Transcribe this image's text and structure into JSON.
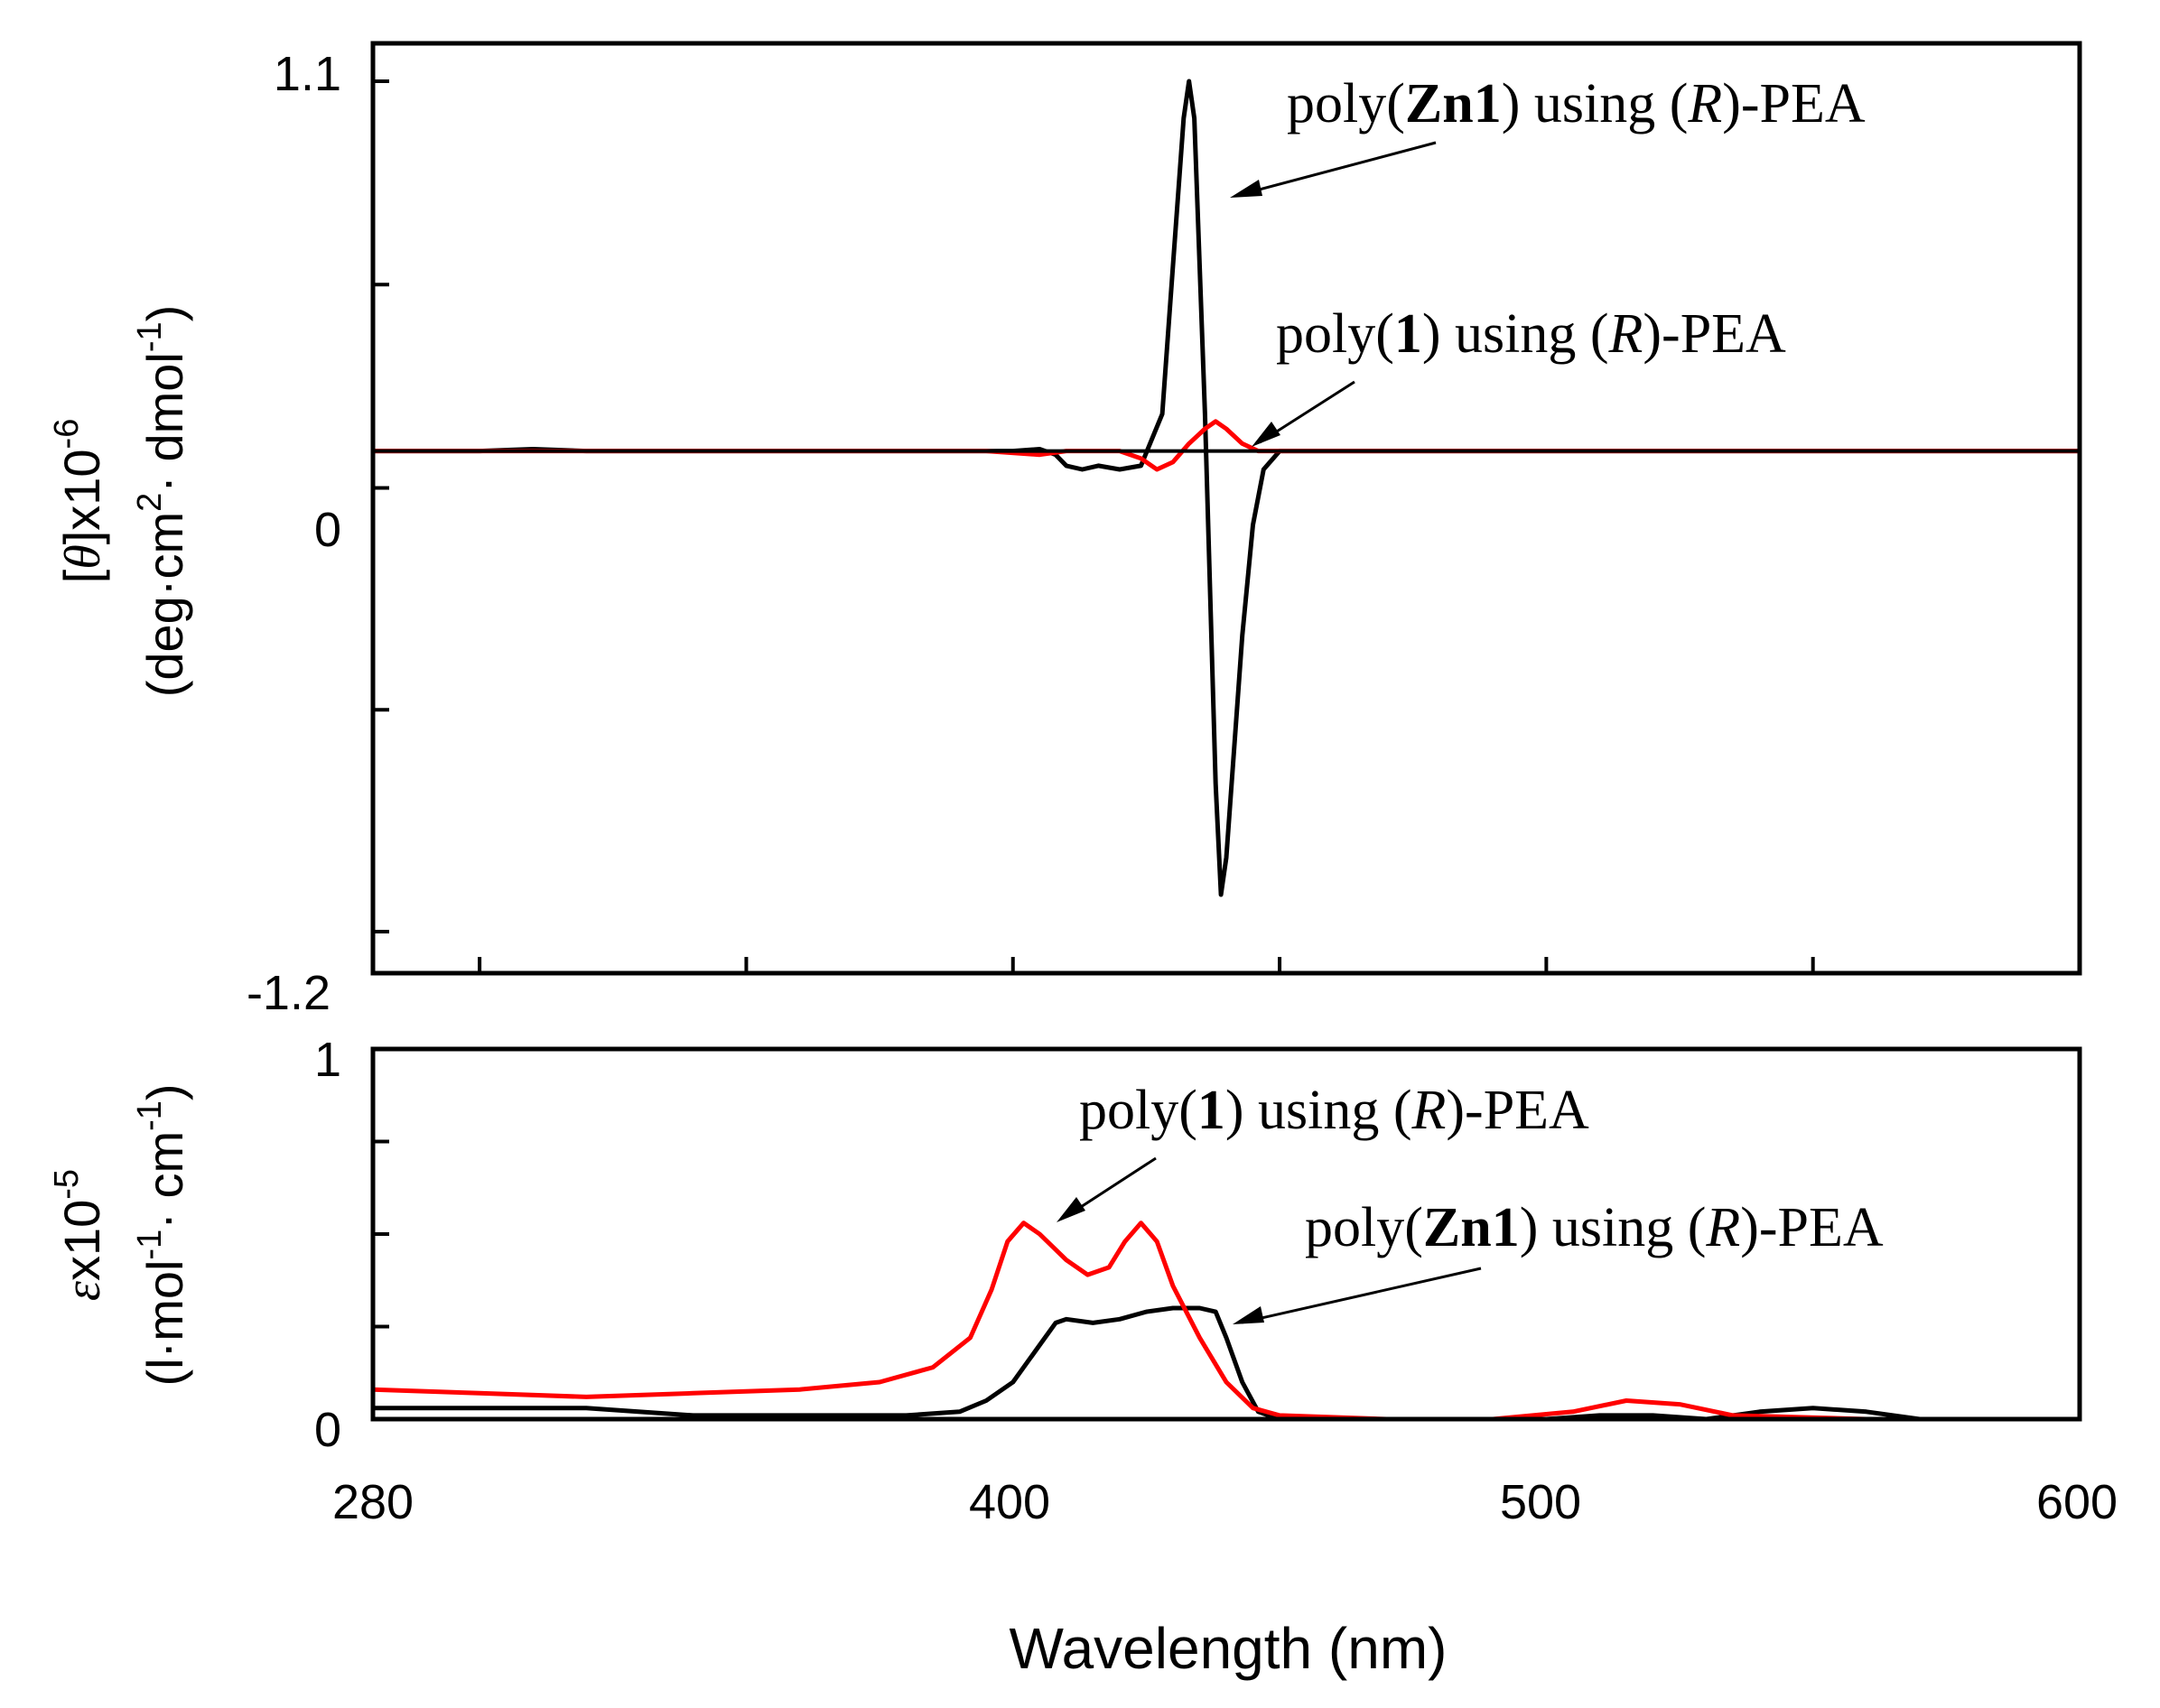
{
  "colors": {
    "black_series": "#000000",
    "red_series": "#ff0000",
    "axis": "#000000"
  },
  "chart_data": [
    {
      "type": "line",
      "panel": "top",
      "title": "",
      "ylabel_line1": "[θ]x10-6",
      "ylabel_line1_parts": {
        "open": "[",
        "symbol": "θ",
        "close": "]x10",
        "exp": "-6"
      },
      "ylabel_line2_parts": {
        "a": "(deg·cm",
        "exp1": "2",
        "b": "· dmol",
        "exp2": "-1",
        "c": ")"
      },
      "xlim": [
        280,
        600
      ],
      "ylim": [
        -1.2,
        1.1
      ],
      "yticks": [
        1.1,
        0,
        -1.2
      ],
      "ytick_labels": [
        "1.1",
        "0",
        "-1.2"
      ],
      "baseline": 0.1,
      "series": [
        {
          "name": "poly(Zn1) using (R)-PEA",
          "color": "#000000",
          "points": [
            [
              280,
              0.1
            ],
            [
              300,
              0.1
            ],
            [
              310,
              0.105
            ],
            [
              320,
              0.1
            ],
            [
              400,
              0.1
            ],
            [
              405,
              0.105
            ],
            [
              408,
              0.09
            ],
            [
              410,
              0.06
            ],
            [
              413,
              0.05
            ],
            [
              416,
              0.06
            ],
            [
              420,
              0.05
            ],
            [
              424,
              0.06
            ],
            [
              428,
              0.2
            ],
            [
              430,
              0.6
            ],
            [
              432,
              1.0
            ],
            [
              433,
              1.1
            ],
            [
              434,
              1.0
            ],
            [
              435,
              0.6
            ],
            [
              436,
              0.2
            ],
            [
              437,
              -0.3
            ],
            [
              438,
              -0.8
            ],
            [
              439,
              -1.1
            ],
            [
              440,
              -1.0
            ],
            [
              441,
              -0.8
            ],
            [
              443,
              -0.4
            ],
            [
              445,
              -0.1
            ],
            [
              447,
              0.05
            ],
            [
              450,
              0.1
            ],
            [
              460,
              0.1
            ],
            [
              600,
              0.1
            ]
          ]
        },
        {
          "name": "poly(1) using (R)-PEA",
          "color": "#ff0000",
          "points": [
            [
              280,
              0.1
            ],
            [
              300,
              0.1
            ],
            [
              360,
              0.1
            ],
            [
              395,
              0.1
            ],
            [
              405,
              0.09
            ],
            [
              410,
              0.1
            ],
            [
              415,
              0.1
            ],
            [
              420,
              0.1
            ],
            [
              424,
              0.08
            ],
            [
              427,
              0.05
            ],
            [
              430,
              0.07
            ],
            [
              433,
              0.12
            ],
            [
              436,
              0.16
            ],
            [
              438,
              0.18
            ],
            [
              440,
              0.16
            ],
            [
              443,
              0.12
            ],
            [
              446,
              0.1
            ],
            [
              450,
              0.1
            ],
            [
              600,
              0.1
            ]
          ]
        }
      ],
      "annotations": [
        {
          "id": "zn1",
          "label": [
            "poly(",
            "Zn1",
            ") using (",
            "R",
            ")-PEA"
          ],
          "target_series": "poly(Zn1) using (R)-PEA"
        },
        {
          "id": "p1",
          "label": [
            "poly(",
            "1",
            ") using (",
            "R",
            ")-PEA"
          ],
          "target_series": "poly(1) using (R)-PEA"
        }
      ]
    },
    {
      "type": "line",
      "panel": "bottom",
      "title": "",
      "xlabel": "Wavelength (nm)",
      "ylabel_line1_parts": {
        "symbol": "ε",
        "text": "x10",
        "exp": "-5"
      },
      "ylabel_line2_parts": {
        "a": "(l·mol",
        "exp1": "-1",
        "b": "· cm",
        "exp2": "-1",
        "c": ")"
      },
      "xlim": [
        280,
        600
      ],
      "ylim": [
        0,
        1
      ],
      "xticks": [
        280,
        400,
        500,
        600
      ],
      "xtick_labels": [
        "280",
        "400",
        "500",
        "600"
      ],
      "yticks": [
        1,
        0
      ],
      "ytick_labels": [
        "1",
        "0"
      ],
      "series": [
        {
          "name": "poly(Zn1) using (R)-PEA",
          "color": "#000000",
          "points": [
            [
              280,
              0.03
            ],
            [
              300,
              0.03
            ],
            [
              320,
              0.03
            ],
            [
              340,
              0.01
            ],
            [
              380,
              0.01
            ],
            [
              390,
              0.02
            ],
            [
              395,
              0.05
            ],
            [
              400,
              0.1
            ],
            [
              405,
              0.2
            ],
            [
              408,
              0.26
            ],
            [
              410,
              0.27
            ],
            [
              415,
              0.26
            ],
            [
              420,
              0.27
            ],
            [
              425,
              0.29
            ],
            [
              430,
              0.3
            ],
            [
              435,
              0.3
            ],
            [
              438,
              0.29
            ],
            [
              440,
              0.22
            ],
            [
              443,
              0.1
            ],
            [
              446,
              0.02
            ],
            [
              450,
              0.0
            ],
            [
              500,
              0.0
            ],
            [
              510,
              0.01
            ],
            [
              520,
              0.01
            ],
            [
              530,
              0.0
            ],
            [
              540,
              0.02
            ],
            [
              550,
              0.03
            ],
            [
              560,
              0.02
            ],
            [
              570,
              0.0
            ],
            [
              600,
              0.0
            ]
          ]
        },
        {
          "name": "poly(1) using (R)-PEA",
          "color": "#ff0000",
          "points": [
            [
              280,
              0.08
            ],
            [
              300,
              0.07
            ],
            [
              320,
              0.06
            ],
            [
              340,
              0.07
            ],
            [
              360,
              0.08
            ],
            [
              375,
              0.1
            ],
            [
              385,
              0.14
            ],
            [
              392,
              0.22
            ],
            [
              396,
              0.35
            ],
            [
              399,
              0.48
            ],
            [
              402,
              0.53
            ],
            [
              405,
              0.5
            ],
            [
              410,
              0.43
            ],
            [
              414,
              0.39
            ],
            [
              418,
              0.41
            ],
            [
              421,
              0.48
            ],
            [
              424,
              0.53
            ],
            [
              427,
              0.48
            ],
            [
              430,
              0.36
            ],
            [
              435,
              0.22
            ],
            [
              440,
              0.1
            ],
            [
              445,
              0.03
            ],
            [
              450,
              0.01
            ],
            [
              470,
              0.0
            ],
            [
              490,
              0.0
            ],
            [
              505,
              0.02
            ],
            [
              515,
              0.05
            ],
            [
              525,
              0.04
            ],
            [
              535,
              0.01
            ],
            [
              560,
              0.0
            ],
            [
              600,
              0.0
            ]
          ]
        }
      ],
      "annotations": [
        {
          "id": "p1b",
          "label": [
            "poly(",
            "1",
            ") using (",
            "R",
            ")-PEA"
          ],
          "target_series": "poly(1) using (R)-PEA"
        },
        {
          "id": "zn1b",
          "label": [
            "poly(",
            "Zn1",
            ") using (",
            "R",
            ")-PEA"
          ],
          "target_series": "poly(Zn1) using (R)-PEA"
        }
      ]
    }
  ]
}
